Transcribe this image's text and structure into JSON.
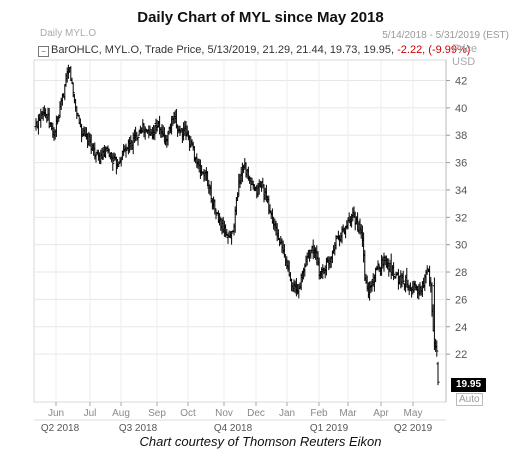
{
  "header": {
    "title": "Daily Chart of MYL since May 2018",
    "date_range": "5/14/2018 - 5/31/2019 (EST)",
    "panel_label": "Daily MYL.O",
    "instrument_text": "BarOHLC, MYL.O, Trade Price, 5/13/2019, 21.29, 21.44, 19.73, 19.95,",
    "change_text": "-2.22, (-9.99%)"
  },
  "axis": {
    "price_title_1": "Price",
    "price_title_2": "USD",
    "auto_label": "Auto"
  },
  "caption": "Chart courtesy of Thomson Reuters Eikon",
  "colors": {
    "bars": "#000000",
    "badge": "#000000",
    "change": "#cc0000"
  },
  "chart_data": {
    "type": "ohlc",
    "y_ticks": [
      22,
      24,
      26,
      28,
      30,
      32,
      34,
      36,
      38,
      40,
      42
    ],
    "ylim": [
      18.5,
      43.5
    ],
    "x_labels": [
      "Jun",
      "Jul",
      "Aug",
      "Sep",
      "Oct",
      "Nov",
      "Dec",
      "Jan",
      "Feb",
      "Mar",
      "Apr",
      "May"
    ],
    "quarter_labels": [
      "Q2 2018",
      "Q3 2018",
      "Q4 2018",
      "Q1 2019",
      "Q2 2019"
    ],
    "last_price": "19.95",
    "last_bar": {
      "date": "5/13/2019",
      "open": 21.29,
      "high": 21.44,
      "low": 19.73,
      "close": 19.95
    },
    "approx_closes": [
      [
        0,
        38.6
      ],
      [
        5,
        40.0
      ],
      [
        10,
        39.2
      ],
      [
        15,
        38.0
      ],
      [
        20,
        39.8
      ],
      [
        25,
        42.0
      ],
      [
        28,
        42.8
      ],
      [
        32,
        40.5
      ],
      [
        38,
        38.2
      ],
      [
        45,
        37.5
      ],
      [
        52,
        36.2
      ],
      [
        60,
        36.8
      ],
      [
        67,
        35.8
      ],
      [
        74,
        37.0
      ],
      [
        80,
        37.5
      ],
      [
        88,
        38.6
      ],
      [
        95,
        38.0
      ],
      [
        101,
        38.8
      ],
      [
        108,
        37.5
      ],
      [
        114,
        39.2
      ],
      [
        120,
        38.3
      ],
      [
        125,
        38.2
      ],
      [
        130,
        37.2
      ],
      [
        136,
        35.5
      ],
      [
        142,
        35.0
      ],
      [
        147,
        33.2
      ],
      [
        152,
        31.8
      ],
      [
        157,
        31.0
      ],
      [
        162,
        30.5
      ],
      [
        165,
        31.6
      ],
      [
        169,
        34.5
      ],
      [
        173,
        36.0
      ],
      [
        178,
        34.5
      ],
      [
        183,
        33.8
      ],
      [
        188,
        34.5
      ],
      [
        193,
        33.0
      ],
      [
        198,
        31.5
      ],
      [
        204,
        30.0
      ],
      [
        209,
        28.5
      ],
      [
        214,
        27.0
      ],
      [
        218,
        26.5
      ],
      [
        222,
        27.8
      ],
      [
        227,
        29.5
      ],
      [
        232,
        29.6
      ],
      [
        236,
        28.0
      ],
      [
        240,
        28.2
      ],
      [
        245,
        29.0
      ],
      [
        250,
        30.5
      ],
      [
        255,
        30.8
      ],
      [
        260,
        31.5
      ],
      [
        265,
        32.0
      ],
      [
        269,
        31.2
      ],
      [
        272,
        30.5
      ],
      [
        274,
        27.5
      ],
      [
        277,
        26.5
      ],
      [
        281,
        27.5
      ],
      [
        286,
        28.5
      ],
      [
        290,
        28.9
      ],
      [
        294,
        28.5
      ],
      [
        298,
        28.0
      ],
      [
        303,
        27.5
      ],
      [
        308,
        27.3
      ],
      [
        312,
        27.0
      ],
      [
        316,
        26.8
      ],
      [
        320,
        26.5
      ],
      [
        324,
        27.5
      ],
      [
        327,
        28.3
      ],
      [
        329,
        27.0
      ],
      [
        331,
        24.0
      ],
      [
        333,
        22.6
      ],
      [
        334,
        22.1
      ],
      [
        335,
        19.95
      ]
    ]
  }
}
